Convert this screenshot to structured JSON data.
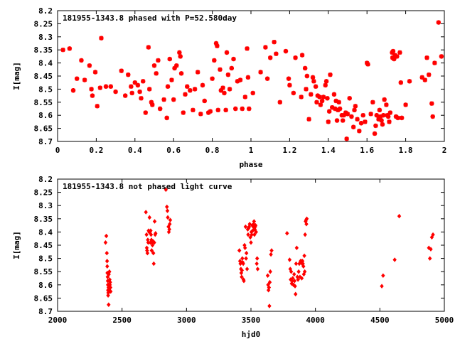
{
  "colors": {
    "points": "#ff0000",
    "axes": "#000000",
    "background": "#ffffff"
  },
  "chart_data": [
    {
      "type": "scatter",
      "title": "181955-1343.8 phased with P=52.580day",
      "xlabel": "phase",
      "ylabel": "I[mag]",
      "xlim": [
        0,
        2
      ],
      "ylim": [
        8.2,
        8.7
      ],
      "y_inverted": true,
      "grid": false,
      "xticks": [
        0,
        0.2,
        0.4,
        0.6,
        0.8,
        1,
        1.2,
        1.4,
        1.6,
        1.8,
        2
      ],
      "xtick_labels": [
        "0",
        "0.2",
        "0.4",
        "0.6",
        "0.8",
        "1",
        "1.2",
        "1.4",
        "1.6",
        "1.8",
        "2"
      ],
      "yticks": [
        8.2,
        8.25,
        8.3,
        8.35,
        8.4,
        8.45,
        8.5,
        8.55,
        8.6,
        8.65,
        8.7
      ],
      "ytick_labels": [
        "8.2",
        "8.25",
        "8.3",
        "8.35",
        "8.4",
        "8.45",
        "8.5",
        "8.55",
        "8.6",
        "8.65",
        "8.7"
      ],
      "points": [
        [
          0.028,
          8.35
        ],
        [
          0.062,
          8.345
        ],
        [
          0.081,
          8.505
        ],
        [
          0.1,
          8.46
        ],
        [
          0.123,
          8.39
        ],
        [
          0.14,
          8.465
        ],
        [
          0.165,
          8.41
        ],
        [
          0.175,
          8.5
        ],
        [
          0.18,
          8.525
        ],
        [
          0.195,
          8.435
        ],
        [
          0.205,
          8.565
        ],
        [
          0.22,
          8.495
        ],
        [
          0.226,
          8.305
        ],
        [
          0.25,
          8.49
        ],
        [
          0.275,
          8.49
        ],
        [
          0.3,
          8.51
        ],
        [
          0.33,
          8.43
        ],
        [
          0.35,
          8.525
        ],
        [
          0.365,
          8.445
        ],
        [
          0.38,
          8.49
        ],
        [
          0.385,
          8.515
        ],
        [
          0.4,
          8.475
        ],
        [
          0.415,
          8.485
        ],
        [
          0.425,
          8.51
        ],
        [
          0.432,
          8.535
        ],
        [
          0.442,
          8.47
        ],
        [
          0.455,
          8.59
        ],
        [
          0.47,
          8.34
        ],
        [
          0.475,
          8.5
        ],
        [
          0.485,
          8.55
        ],
        [
          0.49,
          8.56
        ],
        [
          0.5,
          8.41
        ],
        [
          0.51,
          8.44
        ],
        [
          0.52,
          8.39
        ],
        [
          0.53,
          8.575
        ],
        [
          0.55,
          8.54
        ],
        [
          0.565,
          8.61
        ],
        [
          0.57,
          8.49
        ],
        [
          0.58,
          8.385
        ],
        [
          0.59,
          8.465
        ],
        [
          0.6,
          8.54
        ],
        [
          0.605,
          8.42
        ],
        [
          0.615,
          8.41
        ],
        [
          0.63,
          8.36
        ],
        [
          0.635,
          8.375
        ],
        [
          0.64,
          8.44
        ],
        [
          0.65,
          8.59
        ],
        [
          0.66,
          8.52
        ],
        [
          0.67,
          8.49
        ],
        [
          0.685,
          8.505
        ],
        [
          0.7,
          8.58
        ],
        [
          0.71,
          8.5
        ],
        [
          0.725,
          8.435
        ],
        [
          0.74,
          8.595
        ],
        [
          0.75,
          8.485
        ],
        [
          0.76,
          8.545
        ],
        [
          0.78,
          8.59
        ],
        [
          0.79,
          8.585
        ],
        [
          0.8,
          8.46
        ],
        [
          0.81,
          8.39
        ],
        [
          0.82,
          8.325
        ],
        [
          0.825,
          8.335
        ],
        [
          0.83,
          8.58
        ],
        [
          0.84,
          8.425
        ],
        [
          0.845,
          8.505
        ],
        [
          0.855,
          8.495
        ],
        [
          0.862,
          8.515
        ],
        [
          0.87,
          8.58
        ],
        [
          0.875,
          8.36
        ],
        [
          0.882,
          8.445
        ],
        [
          0.89,
          8.5
        ],
        [
          0.9,
          8.42
        ],
        [
          0.91,
          8.385
        ],
        [
          0.92,
          8.575
        ],
        [
          0.93,
          8.47
        ],
        [
          0.945,
          8.465
        ],
        [
          0.955,
          8.575
        ],
        [
          0.97,
          8.53
        ],
        [
          0.98,
          8.345
        ],
        [
          0.985,
          8.455
        ],
        [
          0.99,
          8.575
        ],
        [
          1.01,
          8.515
        ],
        [
          1.05,
          8.435
        ],
        [
          1.075,
          8.34
        ],
        [
          1.085,
          8.46
        ],
        [
          1.1,
          8.38
        ],
        [
          1.12,
          8.32
        ],
        [
          1.13,
          8.365
        ],
        [
          1.15,
          8.55
        ],
        [
          1.18,
          8.355
        ],
        [
          1.195,
          8.46
        ],
        [
          1.2,
          8.485
        ],
        [
          1.22,
          8.515
        ],
        [
          1.23,
          8.38
        ],
        [
          1.26,
          8.53
        ],
        [
          1.265,
          8.37
        ],
        [
          1.28,
          8.42
        ],
        [
          1.285,
          8.5
        ],
        [
          1.29,
          8.45
        ],
        [
          1.3,
          8.615
        ],
        [
          1.31,
          8.52
        ],
        [
          1.32,
          8.455
        ],
        [
          1.325,
          8.47
        ],
        [
          1.335,
          8.49
        ],
        [
          1.34,
          8.55
        ],
        [
          1.345,
          8.525
        ],
        [
          1.355,
          8.53
        ],
        [
          1.36,
          8.56
        ],
        [
          1.368,
          8.545
        ],
        [
          1.375,
          8.53
        ],
        [
          1.385,
          8.485
        ],
        [
          1.39,
          8.47
        ],
        [
          1.395,
          8.535
        ],
        [
          1.4,
          8.625
        ],
        [
          1.405,
          8.585
        ],
        [
          1.41,
          8.445
        ],
        [
          1.42,
          8.57
        ],
        [
          1.43,
          8.52
        ],
        [
          1.435,
          8.575
        ],
        [
          1.44,
          8.545
        ],
        [
          1.445,
          8.62
        ],
        [
          1.45,
          8.58
        ],
        [
          1.455,
          8.55
        ],
        [
          1.46,
          8.575
        ],
        [
          1.47,
          8.6
        ],
        [
          1.475,
          8.62
        ],
        [
          1.48,
          8.6
        ],
        [
          1.49,
          8.59
        ],
        [
          1.495,
          8.69
        ],
        [
          1.5,
          8.595
        ],
        [
          1.51,
          8.535
        ],
        [
          1.52,
          8.605
        ],
        [
          1.53,
          8.645
        ],
        [
          1.535,
          8.58
        ],
        [
          1.54,
          8.565
        ],
        [
          1.55,
          8.615
        ],
        [
          1.56,
          8.66
        ],
        [
          1.57,
          8.63
        ],
        [
          1.58,
          8.6
        ],
        [
          1.59,
          8.625
        ],
        [
          1.6,
          8.4
        ],
        [
          1.605,
          8.405
        ],
        [
          1.62,
          8.595
        ],
        [
          1.63,
          8.55
        ],
        [
          1.64,
          8.67
        ],
        [
          1.645,
          8.64
        ],
        [
          1.65,
          8.6
        ],
        [
          1.66,
          8.615
        ],
        [
          1.665,
          8.58
        ],
        [
          1.67,
          8.605
        ],
        [
          1.675,
          8.62
        ],
        [
          1.68,
          8.635
        ],
        [
          1.685,
          8.6
        ],
        [
          1.69,
          8.54
        ],
        [
          1.7,
          8.56
        ],
        [
          1.705,
          8.6
        ],
        [
          1.71,
          8.605
        ],
        [
          1.715,
          8.625
        ],
        [
          1.72,
          8.59
        ],
        [
          1.73,
          8.36
        ],
        [
          1.732,
          8.38
        ],
        [
          1.735,
          8.355
        ],
        [
          1.74,
          8.385
        ],
        [
          1.745,
          8.37
        ],
        [
          1.75,
          8.605
        ],
        [
          1.755,
          8.375
        ],
        [
          1.76,
          8.61
        ],
        [
          1.77,
          8.36
        ],
        [
          1.775,
          8.475
        ],
        [
          1.78,
          8.61
        ],
        [
          1.8,
          8.56
        ],
        [
          1.82,
          8.47
        ],
        [
          1.885,
          8.455
        ],
        [
          1.9,
          8.465
        ],
        [
          1.91,
          8.38
        ],
        [
          1.92,
          8.445
        ],
        [
          1.935,
          8.555
        ],
        [
          1.94,
          8.605
        ],
        [
          1.95,
          8.4
        ],
        [
          1.97,
          8.245
        ],
        [
          1.985,
          8.375
        ]
      ]
    },
    {
      "type": "scatter",
      "title": "181955-1343.8 not phased light curve",
      "xlabel": "hjd0",
      "ylabel": "I[mag]",
      "xlim": [
        2000,
        5000
      ],
      "ylim": [
        8.2,
        8.7
      ],
      "y_inverted": true,
      "grid": false,
      "xticks": [
        2000,
        2500,
        3000,
        3500,
        4000,
        4500,
        5000
      ],
      "xtick_labels": [
        "2000",
        "2500",
        "3000",
        "3500",
        "4000",
        "4500",
        "5000"
      ],
      "yticks": [
        8.2,
        8.25,
        8.3,
        8.35,
        8.4,
        8.45,
        8.5,
        8.55,
        8.6,
        8.65,
        8.7
      ],
      "ytick_labels": [
        "8.2",
        "8.25",
        "8.3",
        "8.35",
        "8.4",
        "8.45",
        "8.5",
        "8.55",
        "8.6",
        "8.65",
        "8.7"
      ],
      "points": [
        [
          2372,
          8.44
        ],
        [
          2378,
          8.415
        ],
        [
          2382,
          8.48
        ],
        [
          2384,
          8.51
        ],
        [
          2385,
          8.53
        ],
        [
          2386,
          8.555
        ],
        [
          2388,
          8.57
        ],
        [
          2389,
          8.585
        ],
        [
          2390,
          8.6
        ],
        [
          2391,
          8.62
        ],
        [
          2392,
          8.64
        ],
        [
          2393,
          8.63
        ],
        [
          2394,
          8.6
        ],
        [
          2395,
          8.61
        ],
        [
          2396,
          8.675
        ],
        [
          2397,
          8.625
        ],
        [
          2398,
          8.56
        ],
        [
          2400,
          8.62
        ],
        [
          2402,
          8.55
        ],
        [
          2404,
          8.58
        ],
        [
          2406,
          8.6
        ],
        [
          2408,
          8.59
        ],
        [
          2410,
          8.61
        ],
        [
          2412,
          8.625
        ],
        [
          2685,
          8.325
        ],
        [
          2690,
          8.41
        ],
        [
          2692,
          8.46
        ],
        [
          2694,
          8.47
        ],
        [
          2697,
          8.48
        ],
        [
          2700,
          8.43
        ],
        [
          2703,
          8.44
        ],
        [
          2706,
          8.395
        ],
        [
          2710,
          8.4
        ],
        [
          2713,
          8.345
        ],
        [
          2716,
          8.4
        ],
        [
          2720,
          8.44
        ],
        [
          2722,
          8.395
        ],
        [
          2725,
          8.41
        ],
        [
          2728,
          8.43
        ],
        [
          2730,
          8.47
        ],
        [
          2733,
          8.44
        ],
        [
          2736,
          8.45
        ],
        [
          2740,
          8.435
        ],
        [
          2743,
          8.48
        ],
        [
          2746,
          8.52
        ],
        [
          2750,
          8.44
        ],
        [
          2753,
          8.36
        ],
        [
          2757,
          8.41
        ],
        [
          2760,
          8.405
        ],
        [
          2840,
          8.24
        ],
        [
          2848,
          8.305
        ],
        [
          2852,
          8.32
        ],
        [
          2855,
          8.345
        ],
        [
          2860,
          8.38
        ],
        [
          2863,
          8.4
        ],
        [
          2867,
          8.39
        ],
        [
          2870,
          8.37
        ],
        [
          2874,
          8.355
        ],
        [
          3410,
          8.47
        ],
        [
          3415,
          8.51
        ],
        [
          3418,
          8.52
        ],
        [
          3422,
          8.54
        ],
        [
          3425,
          8.555
        ],
        [
          3428,
          8.57
        ],
        [
          3430,
          8.545
        ],
        [
          3433,
          8.5
        ],
        [
          3436,
          8.515
        ],
        [
          3440,
          8.52
        ],
        [
          3442,
          8.58
        ],
        [
          3445,
          8.585
        ],
        [
          3450,
          8.45
        ],
        [
          3454,
          8.46
        ],
        [
          3458,
          8.38
        ],
        [
          3462,
          8.5
        ],
        [
          3465,
          8.48
        ],
        [
          3470,
          8.54
        ],
        [
          3475,
          8.39
        ],
        [
          3478,
          8.41
        ],
        [
          3482,
          8.385
        ],
        [
          3486,
          8.38
        ],
        [
          3490,
          8.37
        ],
        [
          3495,
          8.42
        ],
        [
          3500,
          8.44
        ],
        [
          3503,
          8.4
        ],
        [
          3506,
          8.41
        ],
        [
          3510,
          8.375
        ],
        [
          3514,
          8.395
        ],
        [
          3518,
          8.38
        ],
        [
          3521,
          8.37
        ],
        [
          3524,
          8.36
        ],
        [
          3527,
          8.41
        ],
        [
          3530,
          8.39
        ],
        [
          3533,
          8.38
        ],
        [
          3536,
          8.375
        ],
        [
          3540,
          8.4
        ],
        [
          3545,
          8.52
        ],
        [
          3548,
          8.5
        ],
        [
          3552,
          8.54
        ],
        [
          3630,
          8.565
        ],
        [
          3633,
          8.6
        ],
        [
          3636,
          8.62
        ],
        [
          3640,
          8.61
        ],
        [
          3643,
          8.68
        ],
        [
          3646,
          8.59
        ],
        [
          3650,
          8.55
        ],
        [
          3655,
          8.485
        ],
        [
          3660,
          8.47
        ],
        [
          3780,
          8.405
        ],
        [
          3800,
          8.505
        ],
        [
          3805,
          8.54
        ],
        [
          3808,
          8.58
        ],
        [
          3812,
          8.55
        ],
        [
          3816,
          8.595
        ],
        [
          3820,
          8.585
        ],
        [
          3824,
          8.575
        ],
        [
          3830,
          8.6
        ],
        [
          3835,
          8.56
        ],
        [
          3838,
          8.585
        ],
        [
          3842,
          8.605
        ],
        [
          3846,
          8.635
        ],
        [
          3850,
          8.52
        ],
        [
          3855,
          8.46
        ],
        [
          3860,
          8.57
        ],
        [
          3865,
          8.58
        ],
        [
          3870,
          8.55
        ],
        [
          3875,
          8.52
        ],
        [
          3880,
          8.57
        ],
        [
          3885,
          8.51
        ],
        [
          3890,
          8.51
        ],
        [
          3894,
          8.575
        ],
        [
          3897,
          8.52
        ],
        [
          3900,
          8.51
        ],
        [
          3903,
          8.52
        ],
        [
          3907,
          8.53
        ],
        [
          3910,
          8.56
        ],
        [
          3914,
          8.49
        ],
        [
          3917,
          8.55
        ],
        [
          3920,
          8.41
        ],
        [
          3924,
          8.36
        ],
        [
          3927,
          8.355
        ],
        [
          3930,
          8.37
        ],
        [
          3933,
          8.35
        ],
        [
          4515,
          8.605
        ],
        [
          4525,
          8.565
        ],
        [
          4615,
          8.505
        ],
        [
          4650,
          8.34
        ],
        [
          4880,
          8.46
        ],
        [
          4888,
          8.5
        ],
        [
          4895,
          8.465
        ],
        [
          4903,
          8.42
        ],
        [
          4912,
          8.41
        ]
      ]
    }
  ]
}
